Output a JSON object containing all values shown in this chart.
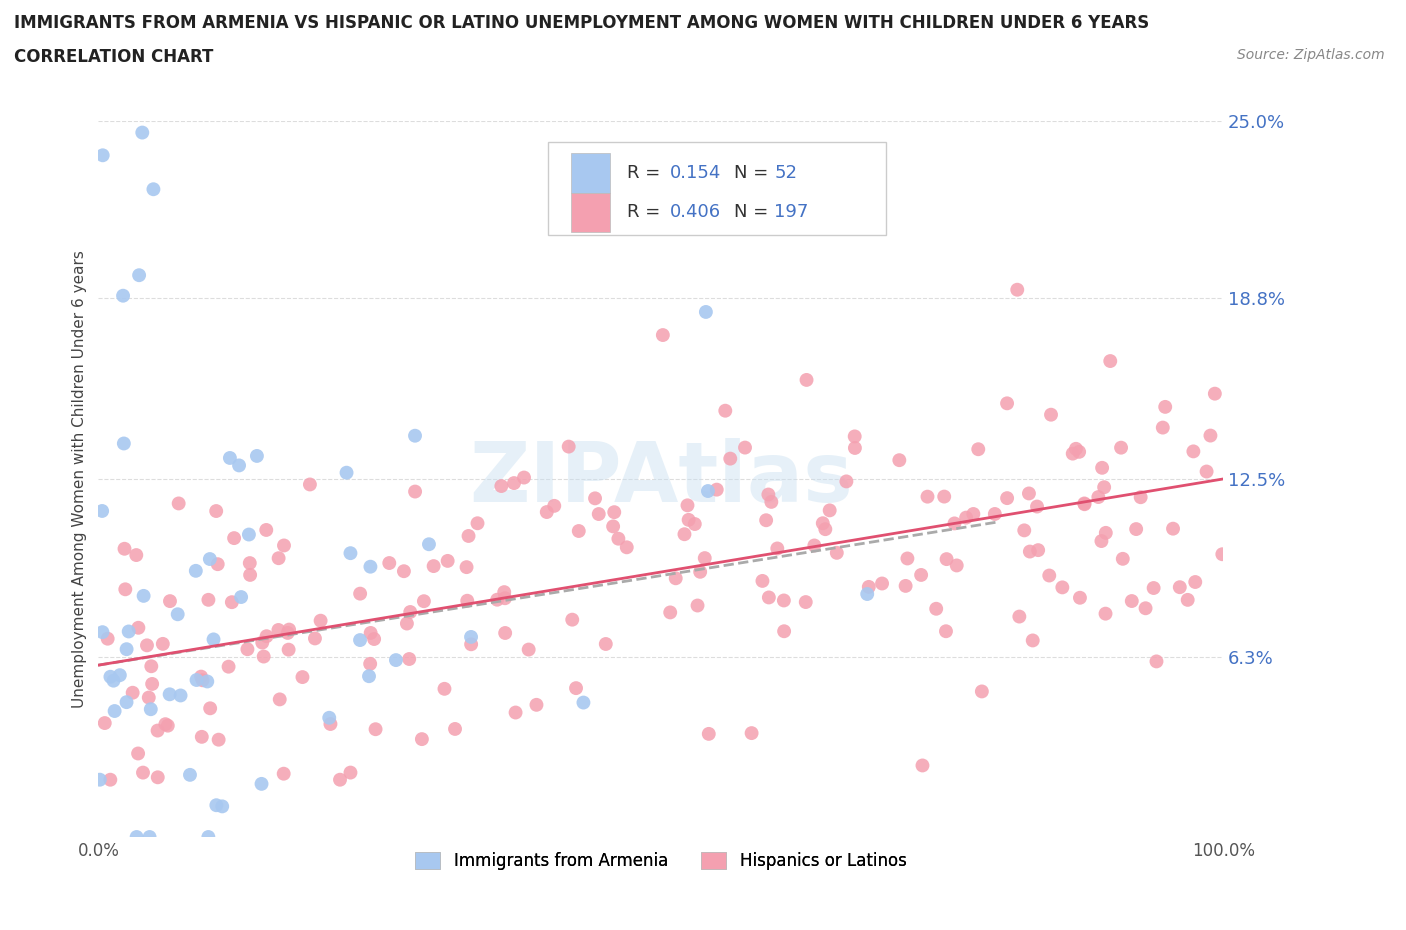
{
  "title_line1": "IMMIGRANTS FROM ARMENIA VS HISPANIC OR LATINO UNEMPLOYMENT AMONG WOMEN WITH CHILDREN UNDER 6 YEARS",
  "title_line2": "CORRELATION CHART",
  "source_text": "Source: ZipAtlas.com",
  "ylabel": "Unemployment Among Women with Children Under 6 years",
  "xlim": [
    0,
    100
  ],
  "ylim": [
    0,
    25
  ],
  "ytick_vals": [
    6.3,
    12.5,
    18.8,
    25.0
  ],
  "ytick_labels": [
    "6.3%",
    "12.5%",
    "18.8%",
    "25.0%"
  ],
  "xtick_vals": [
    0,
    100
  ],
  "xtick_labels": [
    "0.0%",
    "100.0%"
  ],
  "armenia_R": "0.154",
  "armenia_N": "52",
  "hispanic_R": "0.406",
  "hispanic_N": "197",
  "armenia_color": "#a8c8f0",
  "hispanic_color": "#f4a0b0",
  "armenia_line_color": "#aaaaaa",
  "hispanic_line_color": "#e05070",
  "legend_label_1": "Immigrants from Armenia",
  "legend_label_2": "Hispanics or Latinos",
  "watermark": "ZIPAtlas",
  "label_color": "#4472c4",
  "grid_color": "#dddddd",
  "title_color": "#222222",
  "source_color": "#888888",
  "tick_color": "#555555"
}
